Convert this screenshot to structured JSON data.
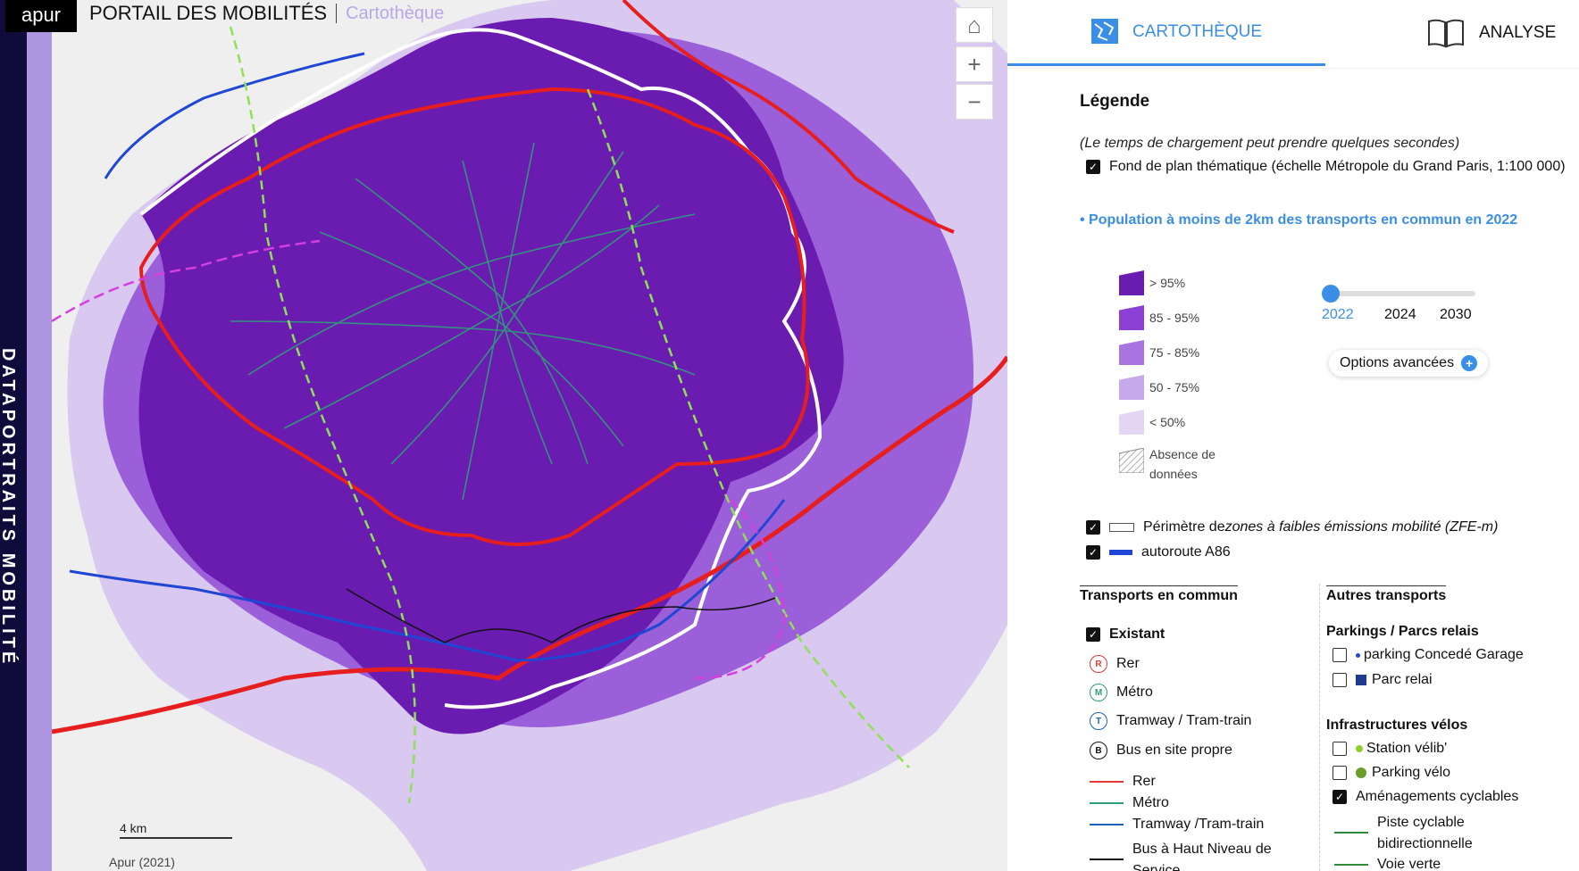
{
  "header": {
    "logo": "apur",
    "title": "PORTAIL DES MOBILITÉS",
    "subtitle": "Cartothèque"
  },
  "side_title": "DATAPORTRAITS MOBILITÉ",
  "map": {
    "scale_label": "4 km",
    "attribution": "Apur (2021)"
  },
  "tabs": [
    {
      "label": "CARTOTHÈQUE",
      "active": true
    },
    {
      "label": "ANALYSE",
      "active": false
    }
  ],
  "legend": {
    "title": "Légende",
    "note": "(Le temps de chargement peut prendre quelques secondes)",
    "basemap_label": "Fond de plan thématique (échelle Métropole du Grand Paris, 1:100 000)",
    "layer_title": "• Population à moins de 2km des transports en commun en 2022",
    "classes": [
      {
        "label": "> 95%",
        "color": "#6a1bb0"
      },
      {
        "label": "85 - 95%",
        "color": "#8b3fd4"
      },
      {
        "label": "75 - 85%",
        "color": "#a874e0"
      },
      {
        "label": "50 - 75%",
        "color": "#c6a9ea"
      },
      {
        "label": "< 50%",
        "color": "#e3d5f3"
      },
      {
        "label": "Absence de données",
        "color": "hatch"
      }
    ],
    "years": [
      "2022",
      "2024",
      "2030"
    ],
    "selected_year": "2022",
    "options_label": "Options avancées",
    "zfe_label_pre": "Périmètre de ",
    "zfe_label_em": "zones à faibles émissions mobilité (ZFE-m)",
    "a86_label": "autoroute A86"
  },
  "transports": {
    "title": "Transports en commun",
    "existant_label": "Existant",
    "icons": [
      {
        "letter": "R",
        "label": "Rer",
        "color": "#e53935"
      },
      {
        "letter": "M",
        "label": "Métro",
        "color": "#2e9e7a"
      },
      {
        "letter": "T",
        "label": "Tramway / Tram-train",
        "color": "#1e63b8"
      },
      {
        "letter": "B",
        "label": "Bus en site propre",
        "color": "#111111"
      }
    ],
    "lines": [
      {
        "label": "Rer",
        "color": "#e53935"
      },
      {
        "label": "Métro",
        "color": "#2e9e7a"
      },
      {
        "label": "Tramway /Tram-train",
        "color": "#1e63b8"
      },
      {
        "label": "Bus à Haut Niveau de Service",
        "color": "#111111"
      }
    ]
  },
  "autres": {
    "title": "Autres transports",
    "parkings_title": "Parkings / Parcs relais",
    "parking_garage": "parking Concedé Garage",
    "parc_relai": "Parc relai",
    "velo_title": "Infrastructures vélos",
    "station_velib": "Station vélib'",
    "parking_velo": "Parking vélo",
    "amenagements": "Aménagements cyclables",
    "piste_bidir": "Piste cyclable bidirectionnelle",
    "voie_verte": "Voie verte"
  }
}
